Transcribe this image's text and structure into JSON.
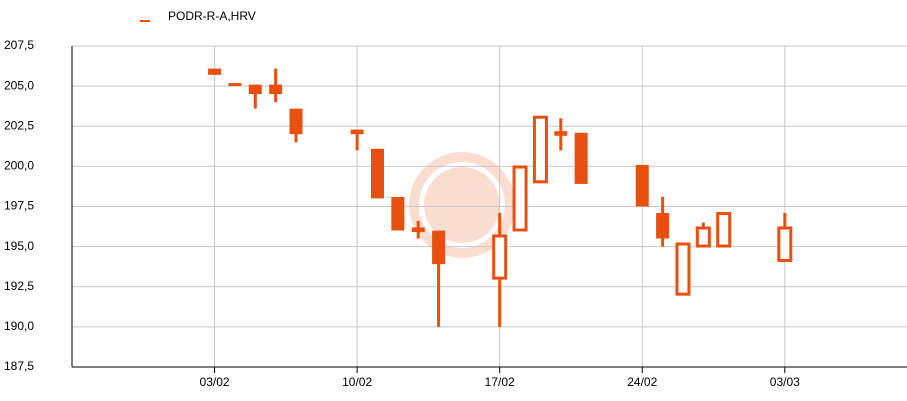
{
  "chart_data": {
    "type": "candlestick",
    "x": [
      "03/02",
      "04/02",
      "05/02",
      "06/02",
      "07/02",
      "10/02",
      "11/02",
      "12/02",
      "13/02",
      "14/02",
      "17/02",
      "18/02",
      "19/02",
      "20/02",
      "21/02",
      "24/02",
      "25/02",
      "26/02",
      "27/02",
      "28/02",
      "03/03"
    ],
    "series": [
      {
        "name": "PODR-R-A,HRV",
        "color": "#e8500f",
        "open": [
          206.0,
          205.1,
          205.0,
          205.0,
          203.5,
          202.2,
          201.0,
          198.0,
          196.1,
          195.9,
          193.1,
          196.1,
          199.1,
          202.1,
          202.0,
          200.0,
          197.0,
          192.1,
          195.1,
          195.1,
          194.2
        ],
        "high": [
          206.1,
          205.1,
          205.1,
          206.1,
          203.6,
          202.2,
          201.0,
          198.0,
          196.6,
          196.0,
          197.1,
          199.9,
          203.1,
          203.0,
          202.0,
          200.0,
          198.1,
          195.1,
          196.5,
          197.0,
          197.1
        ],
        "low": [
          205.7,
          205.1,
          203.6,
          204.0,
          201.5,
          201.0,
          198.0,
          196.1,
          195.5,
          190.0,
          190.0,
          196.1,
          199.1,
          201.0,
          199.0,
          197.6,
          195.0,
          192.1,
          195.1,
          195.1,
          194.2
        ],
        "close": [
          205.8,
          205.1,
          204.6,
          204.6,
          202.1,
          202.1,
          198.1,
          196.1,
          196.0,
          194.0,
          195.6,
          199.9,
          203.0,
          202.0,
          199.0,
          197.6,
          195.6,
          195.1,
          196.1,
          197.0,
          196.1
        ]
      }
    ],
    "xlim": [
      "27/01",
      "09/03"
    ],
    "xticks": [
      "03/02",
      "10/02",
      "17/02",
      "24/02",
      "03/03"
    ],
    "ylim": [
      187.5,
      207.5
    ],
    "yticks": [
      {
        "value": 187.5,
        "label": "187,5"
      },
      {
        "value": 190,
        "label": "190,0"
      },
      {
        "value": 192.5,
        "label": "192,5"
      },
      {
        "value": 195,
        "label": "195,0"
      },
      {
        "value": 197.5,
        "label": "197,5"
      },
      {
        "value": 200,
        "label": "200,0"
      },
      {
        "value": 202.5,
        "label": "202,5"
      },
      {
        "value": 205,
        "label": "205,0"
      },
      {
        "value": 207.5,
        "label": "207,5"
      }
    ],
    "grid": true
  }
}
